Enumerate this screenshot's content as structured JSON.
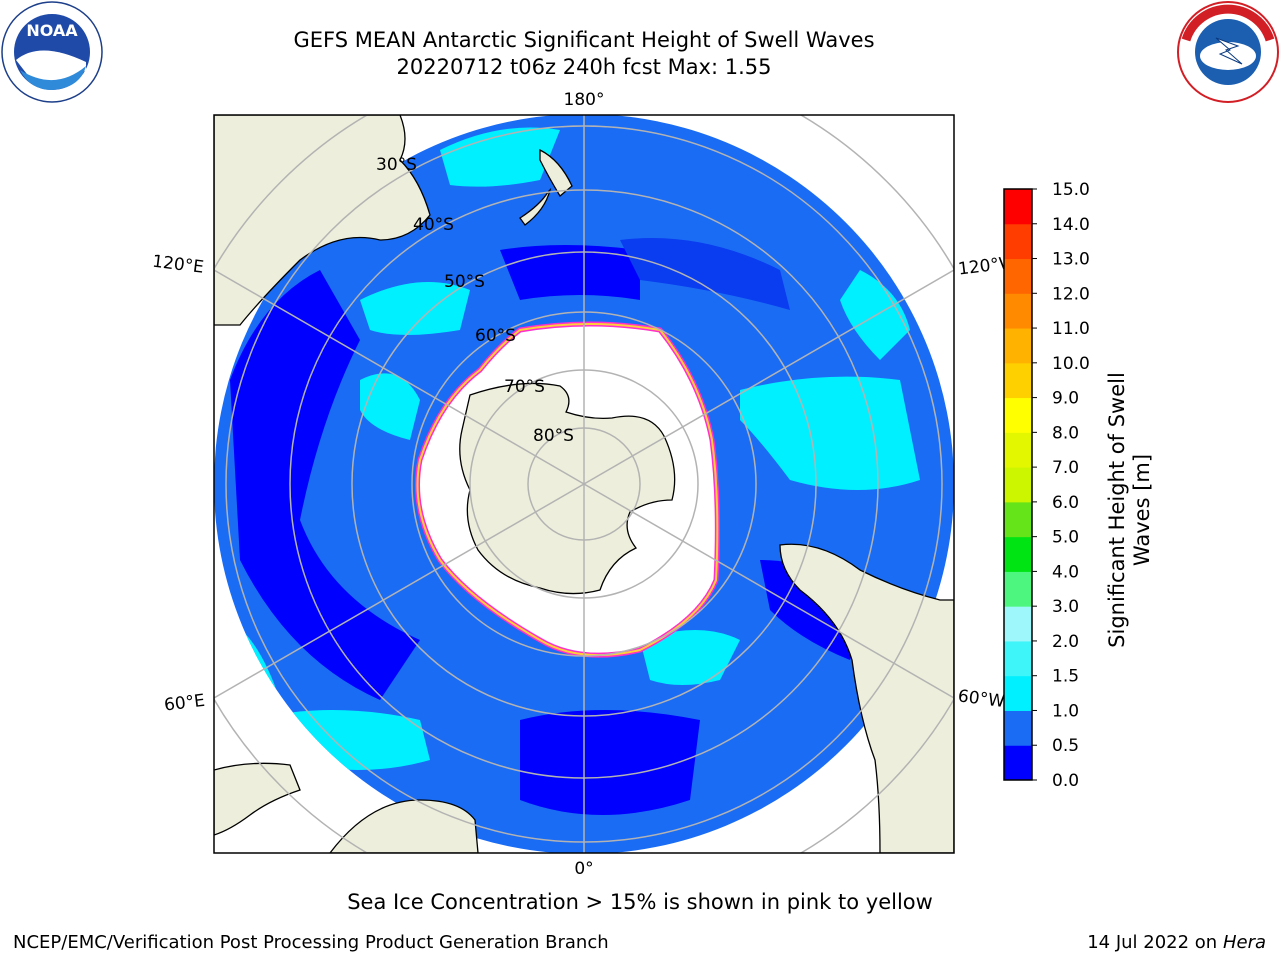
{
  "title": {
    "line1": "GEFS MEAN Antarctic Significant Height of Swell Waves",
    "line2": "20220712 t06z 240h fcst   Max: 1.55"
  },
  "logos": {
    "left": "noaa-logo",
    "right": "nws-logo"
  },
  "map": {
    "projection": "south polar stereographic",
    "longitude_labels": [
      "180°",
      "120°E",
      "120°W",
      "60°E",
      "60°W",
      "0°"
    ],
    "latitude_labels": [
      "30°S",
      "40°S",
      "50°S",
      "60°S",
      "70°S",
      "80°S"
    ]
  },
  "colorbar": {
    "label_line1": "Significant Height of Swell",
    "label_line2": "Waves [m]",
    "ticks": [
      "0.0",
      "0.5",
      "1.0",
      "1.5",
      "2.0",
      "3.0",
      "4.0",
      "5.0",
      "6.0",
      "7.0",
      "8.0",
      "9.0",
      "10.0",
      "11.0",
      "12.0",
      "13.0",
      "14.0",
      "15.0"
    ],
    "colors": [
      "#0000ff",
      "#1a6cf5",
      "#00f0ff",
      "#3ef6fa",
      "#9ef7fb",
      "#4df77f",
      "#00e414",
      "#66e41a",
      "#ccf500",
      "#e2f700",
      "#ffff00",
      "#ffd000",
      "#ffb300",
      "#ff8a00",
      "#ff6600",
      "#ff3d00",
      "#ff0000"
    ]
  },
  "note": "Sea Ice Concentration > 15% is shown in pink to yellow",
  "footer": {
    "left": "NCEP/EMC/Verification Post Processing Product Generation Branch",
    "right_date": "14 Jul 2022 on ",
    "right_host": "Hera"
  }
}
